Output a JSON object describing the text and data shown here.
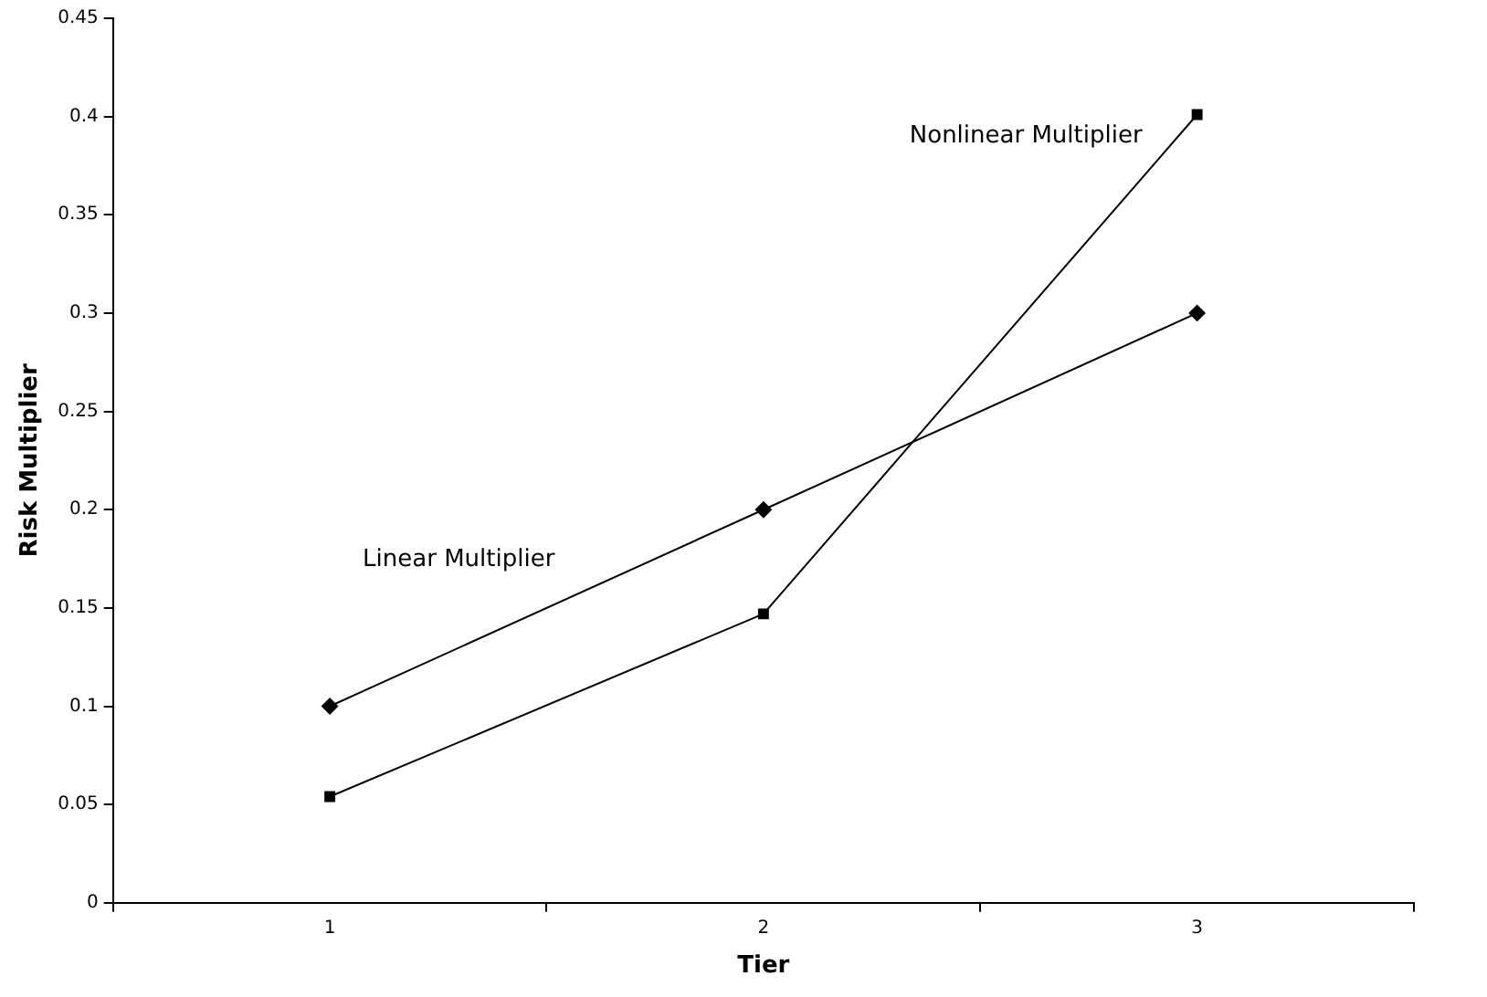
{
  "chart_data": {
    "type": "line",
    "xlabel": "Tier",
    "ylabel": "Risk Multiplier",
    "categories": [
      "1",
      "2",
      "3"
    ],
    "series": [
      {
        "name": "Linear Multiplier",
        "color": "#000000",
        "marker": "diamond",
        "values": [
          0.1,
          0.2,
          0.3
        ]
      },
      {
        "name": "Nonlinear Multiplier",
        "color": "#000000",
        "marker": "square",
        "values": [
          0.054,
          0.147,
          0.401
        ]
      }
    ],
    "ylim": [
      0,
      0.45
    ],
    "yticks": [
      0,
      0.05,
      0.1,
      0.15,
      0.2,
      0.25,
      0.3,
      0.35,
      0.4,
      0.45
    ],
    "grid": false,
    "legend": false
  }
}
